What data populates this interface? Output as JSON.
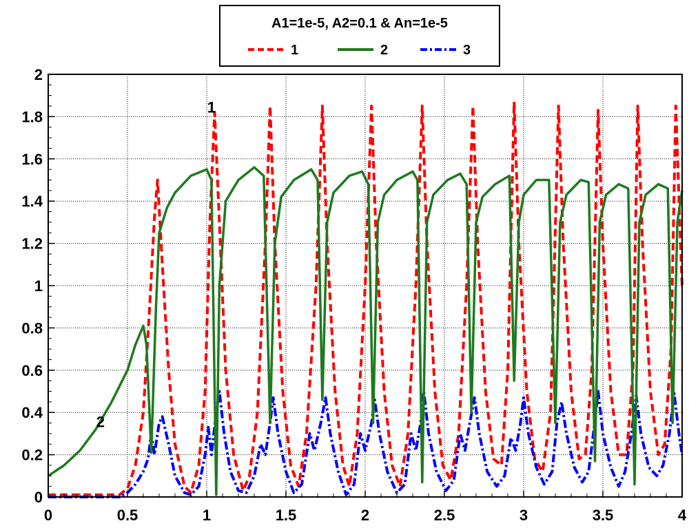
{
  "chart_data": {
    "type": "line",
    "title": "",
    "xlabel": "",
    "ylabel": "",
    "xlim": [
      0,
      4
    ],
    "ylim": [
      0,
      2
    ],
    "x_ticks": [
      "0",
      "0.5",
      "1",
      "1.5",
      "2",
      "2.5",
      "3",
      "3.5",
      "4"
    ],
    "y_ticks": [
      "0",
      "0.2",
      "0.4",
      "0.6",
      "0.8",
      "1",
      "1.2",
      "1.4",
      "1.6",
      "1.8",
      "2"
    ],
    "grid": true,
    "legend": {
      "title": "A1=1e-5, A2=0.1 & An=1e-5",
      "placement": "top-center"
    },
    "annotations": [
      {
        "text": "1",
        "x": 1.03,
        "y": 1.82
      },
      {
        "text": "2",
        "x": 0.33,
        "y": 0.33
      }
    ],
    "series": [
      {
        "name": "1",
        "color": "#ff0000",
        "dash": "dashed",
        "points": [
          [
            0,
            0.01
          ],
          [
            0.45,
            0.01
          ],
          [
            0.5,
            0.04
          ],
          [
            0.55,
            0.15
          ],
          [
            0.6,
            0.4
          ],
          [
            0.64,
            0.9
          ],
          [
            0.67,
            1.32
          ],
          [
            0.69,
            1.5
          ],
          [
            0.72,
            1.1
          ],
          [
            0.76,
            0.6
          ],
          [
            0.8,
            0.25
          ],
          [
            0.86,
            0.05
          ],
          [
            0.9,
            0.02
          ],
          [
            0.95,
            0.15
          ],
          [
            0.99,
            0.5
          ],
          [
            1.02,
            1.3
          ],
          [
            1.05,
            1.82
          ],
          [
            1.08,
            1.3
          ],
          [
            1.12,
            0.6
          ],
          [
            1.17,
            0.2
          ],
          [
            1.23,
            0.03
          ],
          [
            1.27,
            0.1
          ],
          [
            1.32,
            0.4
          ],
          [
            1.37,
            1.2
          ],
          [
            1.4,
            1.85
          ],
          [
            1.43,
            1.2
          ],
          [
            1.48,
            0.5
          ],
          [
            1.53,
            0.15
          ],
          [
            1.58,
            0.05
          ],
          [
            1.63,
            0.3
          ],
          [
            1.69,
            1.0
          ],
          [
            1.73,
            1.85
          ],
          [
            1.76,
            1.2
          ],
          [
            1.81,
            0.5
          ],
          [
            1.86,
            0.15
          ],
          [
            1.9,
            0.05
          ],
          [
            1.95,
            0.3
          ],
          [
            2.0,
            1.0
          ],
          [
            2.04,
            1.85
          ],
          [
            2.07,
            1.2
          ],
          [
            2.12,
            0.5
          ],
          [
            2.17,
            0.15
          ],
          [
            2.22,
            0.05
          ],
          [
            2.27,
            0.3
          ],
          [
            2.32,
            1.0
          ],
          [
            2.36,
            1.85
          ],
          [
            2.39,
            1.2
          ],
          [
            2.44,
            0.5
          ],
          [
            2.49,
            0.15
          ],
          [
            2.54,
            0.08
          ],
          [
            2.59,
            0.3
          ],
          [
            2.64,
            1.0
          ],
          [
            2.68,
            1.85
          ],
          [
            2.71,
            1.2
          ],
          [
            2.76,
            0.5
          ],
          [
            2.81,
            0.18
          ],
          [
            2.86,
            0.15
          ],
          [
            2.9,
            0.6
          ],
          [
            2.94,
            1.87
          ],
          [
            2.97,
            1.2
          ],
          [
            3.02,
            0.5
          ],
          [
            3.07,
            0.18
          ],
          [
            3.12,
            0.12
          ],
          [
            3.17,
            0.4
          ],
          [
            3.22,
            1.85
          ],
          [
            3.25,
            1.2
          ],
          [
            3.3,
            0.5
          ],
          [
            3.35,
            0.18
          ],
          [
            3.39,
            0.2
          ],
          [
            3.43,
            0.6
          ],
          [
            3.47,
            1.83
          ],
          [
            3.5,
            1.2
          ],
          [
            3.55,
            0.5
          ],
          [
            3.6,
            0.2
          ],
          [
            3.65,
            0.2
          ],
          [
            3.69,
            0.6
          ],
          [
            3.72,
            1.85
          ],
          [
            3.75,
            1.2
          ],
          [
            3.8,
            0.5
          ],
          [
            3.85,
            0.2
          ],
          [
            3.89,
            0.25
          ],
          [
            3.93,
            0.7
          ],
          [
            3.96,
            1.85
          ],
          [
            3.99,
            1.2
          ],
          [
            4.0,
            1.0
          ]
        ]
      },
      {
        "name": "2",
        "color": "#1e7a1e",
        "dash": "solid",
        "points": [
          [
            0,
            0.1
          ],
          [
            0.1,
            0.15
          ],
          [
            0.2,
            0.22
          ],
          [
            0.3,
            0.32
          ],
          [
            0.4,
            0.45
          ],
          [
            0.5,
            0.6
          ],
          [
            0.55,
            0.72
          ],
          [
            0.6,
            0.81
          ],
          [
            0.62,
            0.72
          ],
          [
            0.65,
            0.21
          ],
          [
            0.68,
            0.9
          ],
          [
            0.7,
            1.25
          ],
          [
            0.75,
            1.37
          ],
          [
            0.8,
            1.44
          ],
          [
            0.9,
            1.52
          ],
          [
            1.0,
            1.55
          ],
          [
            1.03,
            1.5
          ],
          [
            1.06,
            0.01
          ],
          [
            1.08,
            1.0
          ],
          [
            1.12,
            1.4
          ],
          [
            1.2,
            1.5
          ],
          [
            1.3,
            1.56
          ],
          [
            1.36,
            1.52
          ],
          [
            1.4,
            0.35
          ],
          [
            1.43,
            1.2
          ],
          [
            1.47,
            1.42
          ],
          [
            1.55,
            1.5
          ],
          [
            1.66,
            1.55
          ],
          [
            1.7,
            1.5
          ],
          [
            1.73,
            0.46
          ],
          [
            1.76,
            1.3
          ],
          [
            1.8,
            1.44
          ],
          [
            1.9,
            1.52
          ],
          [
            1.98,
            1.54
          ],
          [
            2.02,
            1.48
          ],
          [
            2.05,
            0.35
          ],
          [
            2.08,
            1.3
          ],
          [
            2.12,
            1.43
          ],
          [
            2.2,
            1.5
          ],
          [
            2.3,
            1.54
          ],
          [
            2.33,
            1.5
          ],
          [
            2.36,
            0.07
          ],
          [
            2.39,
            1.3
          ],
          [
            2.43,
            1.43
          ],
          [
            2.52,
            1.5
          ],
          [
            2.6,
            1.53
          ],
          [
            2.64,
            1.48
          ],
          [
            2.67,
            0.4
          ],
          [
            2.7,
            1.3
          ],
          [
            2.74,
            1.42
          ],
          [
            2.82,
            1.48
          ],
          [
            2.91,
            1.52
          ],
          [
            2.94,
            0.55
          ],
          [
            2.97,
            1.3
          ],
          [
            3.0,
            1.43
          ],
          [
            3.08,
            1.5
          ],
          [
            3.16,
            1.5
          ],
          [
            3.2,
            0.35
          ],
          [
            3.23,
            1.3
          ],
          [
            3.27,
            1.43
          ],
          [
            3.36,
            1.5
          ],
          [
            3.41,
            1.49
          ],
          [
            3.45,
            0.17
          ],
          [
            3.48,
            1.3
          ],
          [
            3.52,
            1.43
          ],
          [
            3.6,
            1.48
          ],
          [
            3.66,
            1.46
          ],
          [
            3.7,
            0.06
          ],
          [
            3.73,
            1.3
          ],
          [
            3.77,
            1.43
          ],
          [
            3.85,
            1.48
          ],
          [
            3.91,
            1.46
          ],
          [
            3.94,
            0.35
          ],
          [
            3.97,
            1.3
          ],
          [
            4.0,
            1.45
          ]
        ]
      },
      {
        "name": "3",
        "color": "#0000ff",
        "dash": "dash-dot",
        "points": [
          [
            0,
            0.0
          ],
          [
            0.45,
            0.0
          ],
          [
            0.5,
            0.02
          ],
          [
            0.55,
            0.06
          ],
          [
            0.6,
            0.12
          ],
          [
            0.63,
            0.18
          ],
          [
            0.65,
            0.3
          ],
          [
            0.67,
            0.2
          ],
          [
            0.7,
            0.35
          ],
          [
            0.72,
            0.38
          ],
          [
            0.76,
            0.25
          ],
          [
            0.8,
            0.1
          ],
          [
            0.86,
            0.02
          ],
          [
            0.9,
            0.01
          ],
          [
            0.95,
            0.05
          ],
          [
            0.99,
            0.2
          ],
          [
            1.01,
            0.33
          ],
          [
            1.03,
            0.2
          ],
          [
            1.06,
            0.4
          ],
          [
            1.08,
            0.5
          ],
          [
            1.11,
            0.3
          ],
          [
            1.15,
            0.12
          ],
          [
            1.2,
            0.03
          ],
          [
            1.25,
            0.02
          ],
          [
            1.3,
            0.1
          ],
          [
            1.34,
            0.25
          ],
          [
            1.37,
            0.2
          ],
          [
            1.4,
            0.35
          ],
          [
            1.42,
            0.47
          ],
          [
            1.45,
            0.3
          ],
          [
            1.5,
            0.12
          ],
          [
            1.55,
            0.02
          ],
          [
            1.6,
            0.06
          ],
          [
            1.65,
            0.3
          ],
          [
            1.68,
            0.22
          ],
          [
            1.72,
            0.35
          ],
          [
            1.75,
            0.47
          ],
          [
            1.78,
            0.3
          ],
          [
            1.83,
            0.12
          ],
          [
            1.88,
            0.01
          ],
          [
            1.93,
            0.06
          ],
          [
            1.97,
            0.3
          ],
          [
            2.0,
            0.22
          ],
          [
            2.04,
            0.35
          ],
          [
            2.06,
            0.46
          ],
          [
            2.09,
            0.3
          ],
          [
            2.14,
            0.12
          ],
          [
            2.2,
            0.02
          ],
          [
            2.25,
            0.06
          ],
          [
            2.29,
            0.3
          ],
          [
            2.32,
            0.22
          ],
          [
            2.35,
            0.35
          ],
          [
            2.37,
            0.5
          ],
          [
            2.4,
            0.3
          ],
          [
            2.45,
            0.12
          ],
          [
            2.51,
            0.03
          ],
          [
            2.56,
            0.08
          ],
          [
            2.6,
            0.3
          ],
          [
            2.63,
            0.22
          ],
          [
            2.66,
            0.35
          ],
          [
            2.69,
            0.47
          ],
          [
            2.72,
            0.3
          ],
          [
            2.77,
            0.12
          ],
          [
            2.83,
            0.05
          ],
          [
            2.88,
            0.1
          ],
          [
            2.92,
            0.28
          ],
          [
            2.95,
            0.22
          ],
          [
            2.98,
            0.35
          ],
          [
            3.0,
            0.47
          ],
          [
            3.03,
            0.3
          ],
          [
            3.08,
            0.14
          ],
          [
            3.13,
            0.06
          ],
          [
            3.18,
            0.12
          ],
          [
            3.21,
            0.35
          ],
          [
            3.24,
            0.45
          ],
          [
            3.27,
            0.3
          ],
          [
            3.32,
            0.14
          ],
          [
            3.37,
            0.07
          ],
          [
            3.41,
            0.12
          ],
          [
            3.44,
            0.3
          ],
          [
            3.47,
            0.5
          ],
          [
            3.5,
            0.3
          ],
          [
            3.55,
            0.14
          ],
          [
            3.6,
            0.05
          ],
          [
            3.64,
            0.12
          ],
          [
            3.68,
            0.3
          ],
          [
            3.71,
            0.48
          ],
          [
            3.74,
            0.3
          ],
          [
            3.79,
            0.14
          ],
          [
            3.84,
            0.1
          ],
          [
            3.88,
            0.15
          ],
          [
            3.92,
            0.3
          ],
          [
            3.95,
            0.49
          ],
          [
            3.98,
            0.3
          ],
          [
            4.0,
            0.2
          ]
        ]
      }
    ]
  }
}
